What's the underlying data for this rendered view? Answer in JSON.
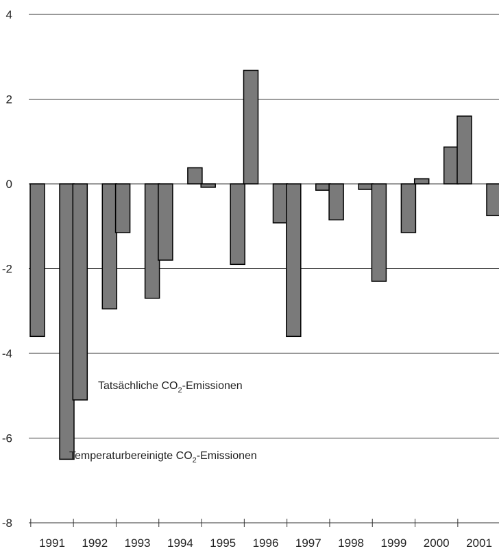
{
  "chart_data": {
    "type": "bar",
    "title": "",
    "xlabel": "",
    "ylabel": "",
    "categories": [
      "1991",
      "1992",
      "1993",
      "1994",
      "1995",
      "1996",
      "1997",
      "1998",
      "1999",
      "2000",
      "2001"
    ],
    "series": [
      {
        "name": "Tatsächliche CO2-Emissionen",
        "values": [
          -3.6,
          -5.1,
          -1.15,
          -1.8,
          -0.08,
          2.68,
          -3.6,
          -0.85,
          -2.3,
          0.12,
          1.6
        ]
      },
      {
        "name": "Temperaturbereinigte CO2-Emissionen",
        "values": [
          -6.5,
          -2.95,
          -2.7,
          0.38,
          -1.9,
          -0.92,
          -0.15,
          -0.13,
          -1.15,
          0.87,
          -0.75
        ]
      }
    ],
    "ylim": [
      -8,
      4
    ],
    "yticks": [
      4,
      2,
      0,
      -2,
      -4,
      -6,
      -8
    ],
    "grid": true,
    "colors": {
      "bar_fill": "#7a7a7a",
      "bar_stroke": "#000000"
    },
    "annotations": [
      {
        "prefix": "Tatsächliche CO",
        "sub": "2",
        "suffix": "-Emissionen"
      },
      {
        "prefix": "Temperaturbereinigte CO",
        "sub": "2",
        "suffix": "-Emissionen"
      }
    ]
  }
}
